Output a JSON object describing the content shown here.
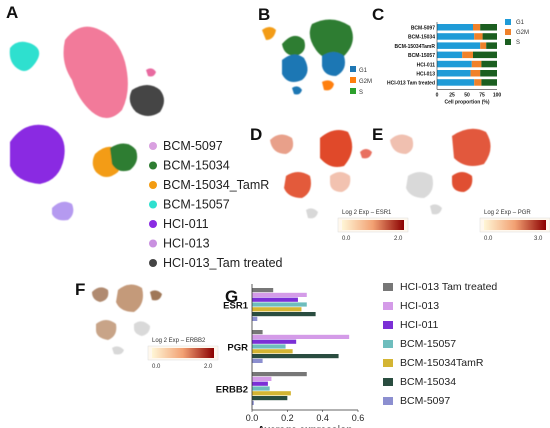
{
  "panels": {
    "A": "A",
    "B": "B",
    "C": "C",
    "D": "D",
    "E": "E",
    "F": "F",
    "G": "G"
  },
  "legend_A": {
    "items": [
      {
        "label": "BCM-5097",
        "color": "#d9a0e0"
      },
      {
        "label": "BCM-15034",
        "color": "#2e7d32"
      },
      {
        "label": "BCM-15034_TamR",
        "color": "#f39c12"
      },
      {
        "label": "BCM-15057",
        "color": "#2fe0cf"
      },
      {
        "label": "HCI-011",
        "color": "#8a2be2"
      },
      {
        "label": "HCI-013",
        "color": "#c990e0"
      },
      {
        "label": "HCI-013_Tam treated",
        "color": "#444444"
      }
    ]
  },
  "legend_B": {
    "items": [
      {
        "label": "G1",
        "color": "#1f77b4"
      },
      {
        "label": "G2M",
        "color": "#ff7f0e"
      },
      {
        "label": "S",
        "color": "#2ca02c"
      }
    ]
  },
  "colorbars": {
    "D": {
      "title": "Log 2 Exp – ESR1",
      "min": "0.0",
      "max": "2.0"
    },
    "E": {
      "title": "Log 2 Exp – PGR",
      "min": "0.0",
      "max": "3.0"
    },
    "F": {
      "title": "Log 2 Exp – ERBB2",
      "min": "0.0",
      "max": "2.0"
    }
  },
  "chart_data": [
    {
      "type": "bar",
      "orientation": "horizontal-stacked",
      "categories": [
        "BCM-5097",
        "BCM-15034",
        "BCM-15034TamR",
        "BCM-15057",
        "HCI-011",
        "HCI-013",
        "HCI-013 Tam treated"
      ],
      "series": [
        {
          "name": "G1",
          "color": "#1f9bd7",
          "values": [
            60,
            62,
            72,
            42,
            58,
            56,
            62
          ]
        },
        {
          "name": "G2M",
          "color": "#f0812a",
          "values": [
            12,
            14,
            10,
            18,
            16,
            16,
            12
          ]
        },
        {
          "name": "S",
          "color": "#1b5e20",
          "values": [
            28,
            24,
            18,
            40,
            26,
            28,
            26
          ]
        }
      ],
      "xlabel": "Cell proportion (%)",
      "xticks": [
        "0",
        "25",
        "50",
        "75",
        "100"
      ],
      "xlim": [
        0,
        100
      ],
      "legend": "right"
    },
    {
      "type": "bar",
      "orientation": "horizontal-grouped",
      "categories": [
        "ESR1",
        "PGR",
        "ERBB2"
      ],
      "series": [
        {
          "name": "HCI-013 Tam treated",
          "color": "#777777",
          "values": [
            0.12,
            0.06,
            0.31
          ]
        },
        {
          "name": "HCI-013",
          "color": "#d49be8",
          "values": [
            0.31,
            0.55,
            0.11
          ]
        },
        {
          "name": "HCI-011",
          "color": "#7b2fd6",
          "values": [
            0.26,
            0.25,
            0.09
          ]
        },
        {
          "name": "BCM-15057",
          "color": "#6ebdbd",
          "values": [
            0.31,
            0.19,
            0.1
          ]
        },
        {
          "name": "BCM-15034TamR",
          "color": "#d4b533",
          "values": [
            0.28,
            0.23,
            0.22
          ]
        },
        {
          "name": "BCM-15034",
          "color": "#2a4d40",
          "values": [
            0.36,
            0.49,
            0.2
          ]
        },
        {
          "name": "BCM-5097",
          "color": "#8c8fd0",
          "values": [
            0.03,
            0.06,
            0.01
          ]
        }
      ],
      "xlabel": "Average expression",
      "xticks": [
        "0.0",
        "0.2",
        "0.4",
        "0.6"
      ],
      "xlim": [
        0,
        0.6
      ],
      "legend": "right"
    }
  ]
}
